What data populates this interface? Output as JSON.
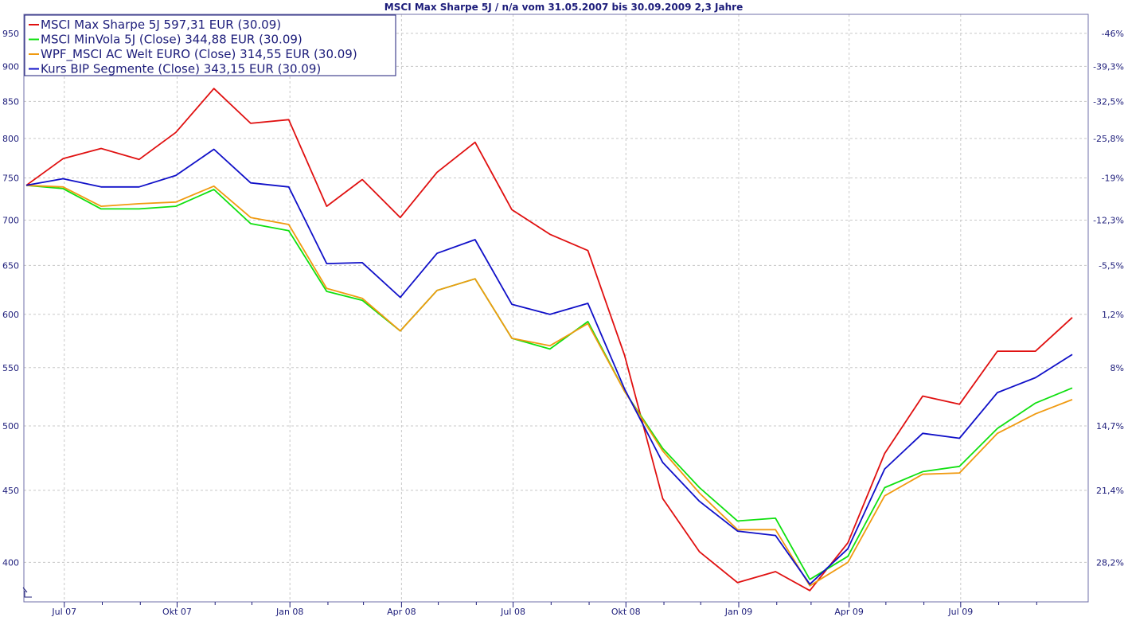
{
  "chart_data": {
    "type": "line",
    "title": "MSCI Max Sharpe 5J / n/a vom 31.05.2007 bis 30.09.2009 2,3 Jahre",
    "y_scale": "log",
    "ylim": [
      375,
      980
    ],
    "xlim": [
      "2007-05-31",
      "2009-09-30"
    ],
    "yticks": [
      400,
      450,
      500,
      550,
      600,
      650,
      700,
      750,
      800,
      850,
      900,
      950
    ],
    "yticks_right": [
      "28,2%",
      "21,4%",
      "14,7%",
      "8%",
      "1,2%",
      "-5,5%",
      "-12,3%",
      "-19%",
      "-25,8%",
      "-32,5%",
      "-39,3%",
      "-46%"
    ],
    "x_ticks": [
      {
        "date": "2007-07-01",
        "label": "Jul 07"
      },
      {
        "date": "2007-10-01",
        "label": "Okt 07"
      },
      {
        "date": "2008-01-01",
        "label": "Jan 08"
      },
      {
        "date": "2008-04-01",
        "label": "Apr 08"
      },
      {
        "date": "2008-07-01",
        "label": "Jul 08"
      },
      {
        "date": "2008-10-01",
        "label": "Okt 08"
      },
      {
        "date": "2009-01-01",
        "label": "Jan 09"
      },
      {
        "date": "2009-04-01",
        "label": "Apr 09"
      },
      {
        "date": "2009-07-01",
        "label": "Jul 09"
      }
    ],
    "grid": true,
    "legend_position": "top-left",
    "x": [
      "2007-05-31",
      "2007-06-30",
      "2007-07-31",
      "2007-08-31",
      "2007-09-30",
      "2007-10-31",
      "2007-11-30",
      "2007-12-31",
      "2008-01-31",
      "2008-02-29",
      "2008-03-31",
      "2008-04-30",
      "2008-05-31",
      "2008-06-30",
      "2008-07-31",
      "2008-08-31",
      "2008-09-30",
      "2008-10-31",
      "2008-11-30",
      "2008-12-31",
      "2009-01-31",
      "2009-02-28",
      "2009-03-31",
      "2009-04-30",
      "2009-05-31",
      "2009-06-30",
      "2009-07-31",
      "2009-08-31",
      "2009-09-30"
    ],
    "series": [
      {
        "name": "MSCI Max Sharpe 5J 597,31 EUR (30.09)",
        "color": "#e01010",
        "values": [
          741,
          774,
          787,
          773,
          808,
          868,
          820,
          825,
          716,
          748,
          703,
          757,
          795,
          712,
          684,
          666,
          561,
          444,
          407,
          387,
          394,
          382,
          413,
          478,
          525,
          518,
          565,
          565,
          597
        ]
      },
      {
        "name": "MSCI MinVola 5J (Close) 344,88 EUR (30.09)",
        "color": "#10e010",
        "values": [
          741,
          737,
          713,
          713,
          716,
          736,
          696,
          688,
          623,
          614,
          584,
          624,
          636,
          577,
          567,
          593,
          529,
          482,
          452,
          428,
          430,
          389,
          404,
          452,
          464,
          468,
          498,
          519,
          532
        ]
      },
      {
        "name": "WPF_MSCI AC Welt EURO (Close) 314,55 EUR (30.09)",
        "color": "#f09a10",
        "values": [
          741,
          739,
          716,
          719,
          721,
          740,
          703,
          695,
          626,
          616,
          584,
          624,
          636,
          577,
          570,
          591,
          529,
          480,
          448,
          422,
          422,
          385,
          400,
          446,
          462,
          463,
          494,
          510,
          522
        ]
      },
      {
        "name": "Kurs BIP Segmente (Close) 343,15 EUR (30.09)",
        "color": "#1010c8",
        "values": [
          741,
          749,
          739,
          739,
          753,
          786,
          744,
          739,
          652,
          653,
          617,
          663,
          678,
          610,
          600,
          611,
          531,
          471,
          442,
          421,
          418,
          386,
          409,
          466,
          494,
          490,
          528,
          541,
          562
        ]
      }
    ]
  }
}
